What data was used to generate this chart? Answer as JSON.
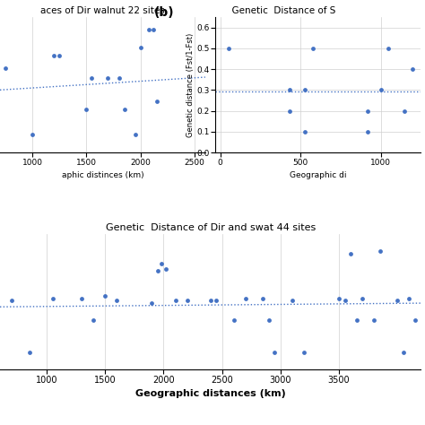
{
  "top_left": {
    "title": "aces of Dir walnut 22 sites",
    "xlabel": "aphic distinces (km)",
    "xlim": [
      700,
      2600
    ],
    "ylim": [
      0.05,
      0.58
    ],
    "xticks": [
      1000,
      1500,
      2000,
      2500
    ],
    "scatter_x": [
      750,
      1000,
      1200,
      1250,
      1500,
      1550,
      1700,
      1800,
      1850,
      1950,
      2000,
      2080,
      2120,
      2150
    ],
    "scatter_y": [
      0.38,
      0.12,
      0.43,
      0.43,
      0.22,
      0.34,
      0.34,
      0.34,
      0.22,
      0.12,
      0.46,
      0.53,
      0.53,
      0.25
    ],
    "trend_x": [
      700,
      2600
    ],
    "trend_y": [
      0.295,
      0.345
    ]
  },
  "top_right": {
    "label": "(b)",
    "title": "Genetic  Distance of S",
    "xlabel": "Geographic di",
    "ylabel": "Genetic distance (Fst/1-Fst)",
    "xlim": [
      -30,
      1250
    ],
    "ylim": [
      0,
      0.65
    ],
    "xticks": [
      0,
      500,
      1000
    ],
    "yticks": [
      0,
      0.1,
      0.2,
      0.3,
      0.4,
      0.5,
      0.6
    ],
    "scatter_x": [
      50,
      430,
      430,
      530,
      530,
      580,
      920,
      920,
      1000,
      1050,
      1150,
      1200
    ],
    "scatter_y": [
      0.5,
      0.2,
      0.3,
      0.1,
      0.3,
      0.5,
      0.1,
      0.2,
      0.3,
      0.5,
      0.2,
      0.4
    ],
    "trend_x": [
      -30,
      1250
    ],
    "trend_y": [
      0.295,
      0.295
    ]
  },
  "bottom": {
    "title": "Genetic  Distance of Dir and swat 44 sites",
    "xlabel": "Geographic distances (km)",
    "xlim": [
      600,
      4200
    ],
    "ylim": [
      0.02,
      0.57
    ],
    "xticks": [
      1000,
      1500,
      2000,
      2500,
      3000,
      3500
    ],
    "scatter_x": [
      700,
      850,
      1050,
      1300,
      1400,
      1500,
      1600,
      1900,
      1950,
      1980,
      2020,
      2100,
      2200,
      2400,
      2450,
      2600,
      2700,
      2850,
      2900,
      2950,
      3100,
      3200,
      3500,
      3550,
      3600,
      3650,
      3700,
      3800,
      3850,
      4000,
      4050,
      4100,
      4150
    ],
    "scatter_y": [
      0.3,
      0.09,
      0.31,
      0.31,
      0.22,
      0.32,
      0.3,
      0.29,
      0.42,
      0.45,
      0.43,
      0.3,
      0.3,
      0.3,
      0.3,
      0.22,
      0.31,
      0.31,
      0.22,
      0.09,
      0.3,
      0.09,
      0.31,
      0.3,
      0.49,
      0.22,
      0.31,
      0.22,
      0.5,
      0.3,
      0.09,
      0.31,
      0.22
    ],
    "trend_x": [
      600,
      4200
    ],
    "trend_y": [
      0.275,
      0.29
    ]
  },
  "dot_color": "#4472C4",
  "dot_size": 12,
  "trend_color": "#4472C4",
  "grid_color": "#d0d0d0",
  "bg_color": "#ffffff",
  "fig_bg": "#ffffff"
}
